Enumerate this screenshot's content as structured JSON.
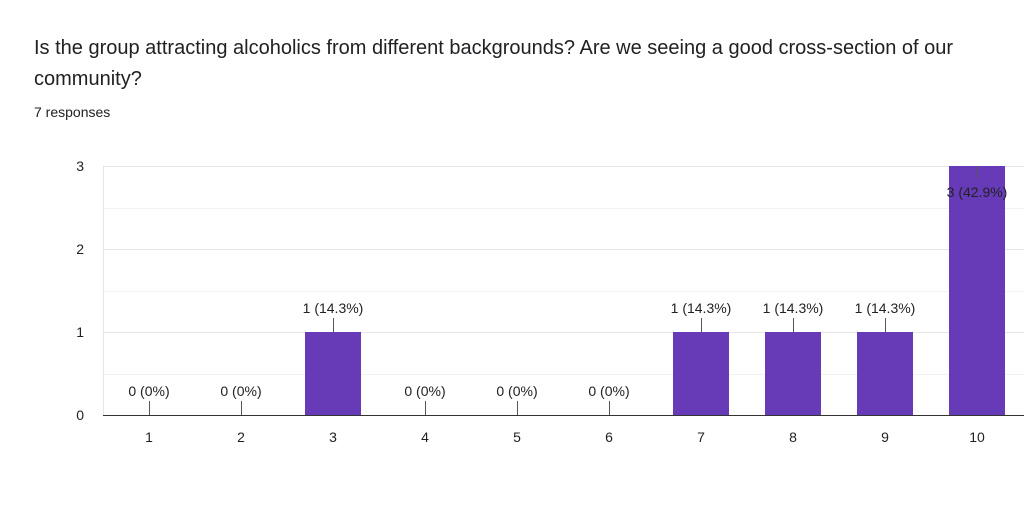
{
  "question": {
    "title": "Is the group attracting alcoholics from different backgrounds? Are we seeing a good cross-section of our community?",
    "responses": "7 responses"
  },
  "colors": {
    "bar": "#673ab7",
    "grid": "#e6e6e6",
    "axis": "#333333",
    "text": "#222222"
  },
  "chart_data": {
    "type": "bar",
    "title": "",
    "xlabel": "",
    "ylabel": "",
    "categories": [
      "1",
      "2",
      "3",
      "4",
      "5",
      "6",
      "7",
      "8",
      "9",
      "10"
    ],
    "values": [
      0,
      0,
      1,
      0,
      0,
      0,
      1,
      1,
      1,
      3
    ],
    "data_labels": [
      "0 (0%)",
      "0 (0%)",
      "1 (14.3%)",
      "0 (0%)",
      "0 (0%)",
      "0 (0%)",
      "1 (14.3%)",
      "1 (14.3%)",
      "1 (14.3%)",
      "3 (42.9%)"
    ],
    "ylim": [
      0,
      3
    ],
    "yticks": [
      "0",
      "1",
      "2",
      "3"
    ],
    "grid": true,
    "legend": "none"
  }
}
